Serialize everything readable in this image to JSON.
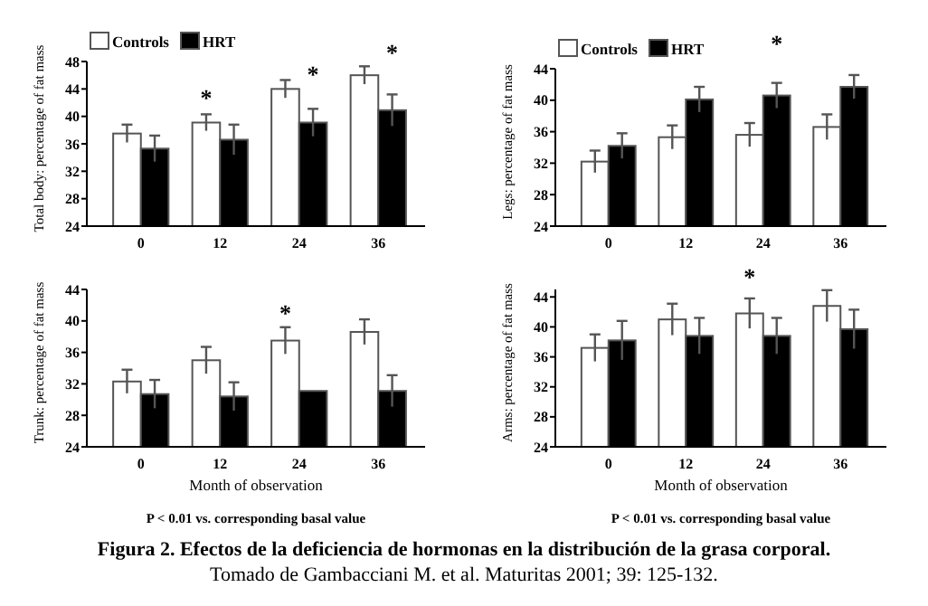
{
  "chart_data": [
    {
      "type": "bar",
      "ylabel": "Total body: percentage of fat mass",
      "categories": [
        "0",
        "12",
        "24",
        "36"
      ],
      "ylim": [
        24,
        48
      ],
      "yticks": [
        24,
        28,
        32,
        36,
        40,
        44,
        48
      ],
      "legend": "top left",
      "grid": false,
      "series": [
        {
          "name": "Controls",
          "color": "#ffffff",
          "values": [
            37.5,
            39.1,
            44.0,
            46.0
          ],
          "errors": [
            1.3,
            1.2,
            1.3,
            1.3
          ]
        },
        {
          "name": "HRT",
          "color": "#000000",
          "values": [
            35.3,
            36.6,
            39.1,
            40.9
          ],
          "errors": [
            1.9,
            2.2,
            2.0,
            2.3
          ]
        }
      ],
      "annotations": [
        "*",
        "*",
        "*"
      ]
    },
    {
      "type": "bar",
      "ylabel": "Legs: percentage of fat mass",
      "categories": [
        "0",
        "12",
        "24",
        "36"
      ],
      "ylim": [
        24,
        44
      ],
      "yticks": [
        24,
        28,
        32,
        36,
        40,
        44
      ],
      "legend": "top left",
      "grid": false,
      "series": [
        {
          "name": "Controls",
          "color": "#ffffff",
          "values": [
            32.2,
            35.3,
            35.6,
            36.6
          ],
          "errors": [
            1.4,
            1.5,
            1.5,
            1.6
          ]
        },
        {
          "name": "HRT",
          "color": "#000000",
          "values": [
            34.2,
            40.1,
            40.6,
            41.7
          ],
          "errors": [
            1.6,
            1.6,
            1.6,
            1.5
          ]
        }
      ],
      "annotations": [
        "*"
      ]
    },
    {
      "type": "bar",
      "ylabel": "Trunk: percentage of fat mass",
      "xlabel": "Month of observation",
      "categories": [
        "0",
        "12",
        "24",
        "36"
      ],
      "ylim": [
        24,
        44
      ],
      "yticks": [
        24,
        28,
        32,
        36,
        40,
        44
      ],
      "grid": false,
      "series": [
        {
          "color": "#ffffff",
          "values": [
            32.3,
            35.0,
            37.5,
            38.6
          ],
          "errors": [
            1.5,
            1.7,
            1.7,
            1.6
          ]
        },
        {
          "color": "#000000",
          "values": [
            30.7,
            30.4,
            31.1,
            31.1
          ],
          "errors": [
            1.8,
            1.8,
            null,
            2.0
          ]
        }
      ],
      "annotations": [
        "*",
        "P < 0.01 vs. corresponding basal value"
      ]
    },
    {
      "type": "bar",
      "ylabel": "Arms: percentage of fat mass",
      "xlabel": "Month of observation",
      "categories": [
        "0",
        "12",
        "24",
        "36"
      ],
      "ylim": [
        24,
        45
      ],
      "yticks": [
        24,
        28,
        32,
        36,
        40,
        44
      ],
      "grid": false,
      "series": [
        {
          "color": "#ffffff",
          "values": [
            37.2,
            41.0,
            41.8,
            42.8
          ],
          "errors": [
            1.8,
            2.1,
            2.0,
            2.1
          ]
        },
        {
          "color": "#000000",
          "values": [
            38.2,
            38.8,
            38.8,
            39.7
          ],
          "errors": [
            2.6,
            2.4,
            2.4,
            2.6
          ]
        }
      ],
      "annotations": [
        "*",
        "P < 0.01 vs. corresponding basal value",
        "Figura 2. Efectos de la deficiencia de hormonas en la distribución de la grasa corporal.",
        "Tomado de Gambacciani M. et al.  Maturitas 2001; 39: 125-132."
      ]
    }
  ]
}
